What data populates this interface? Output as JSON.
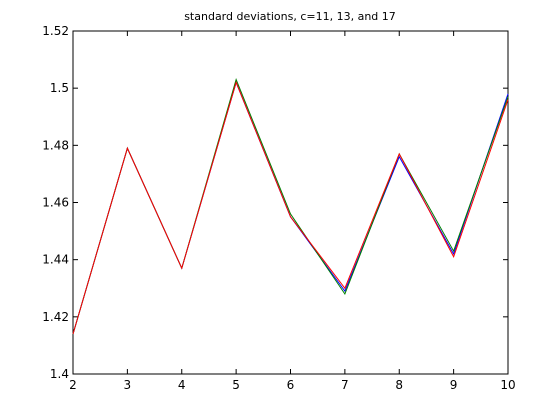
{
  "chart_data": {
    "type": "line",
    "title": "standard deviations, c=11, 13, and 17",
    "xlabel": "",
    "ylabel": "",
    "xlim": [
      2,
      10
    ],
    "ylim": [
      1.4,
      1.52
    ],
    "xticks": [
      "2",
      "3",
      "4",
      "5",
      "6",
      "7",
      "8",
      "9",
      "10"
    ],
    "yticks": [
      "1.4",
      "1.42",
      "1.44",
      "1.46",
      "1.48",
      "1.5",
      "1.52"
    ],
    "grid": false,
    "legend": "none",
    "x": [
      2,
      3,
      4,
      5,
      6,
      7,
      8,
      9,
      10
    ],
    "series": [
      {
        "color": "#0000ff",
        "values": [
          1.414,
          1.479,
          1.437,
          1.502,
          1.455,
          1.429,
          1.476,
          1.442,
          1.498
        ]
      },
      {
        "color": "#008000",
        "values": [
          1.414,
          1.479,
          1.437,
          1.503,
          1.456,
          1.428,
          1.477,
          1.443,
          1.497
        ]
      },
      {
        "color": "#ff0000",
        "values": [
          1.414,
          1.479,
          1.437,
          1.502,
          1.455,
          1.43,
          1.477,
          1.441,
          1.496
        ]
      }
    ]
  }
}
